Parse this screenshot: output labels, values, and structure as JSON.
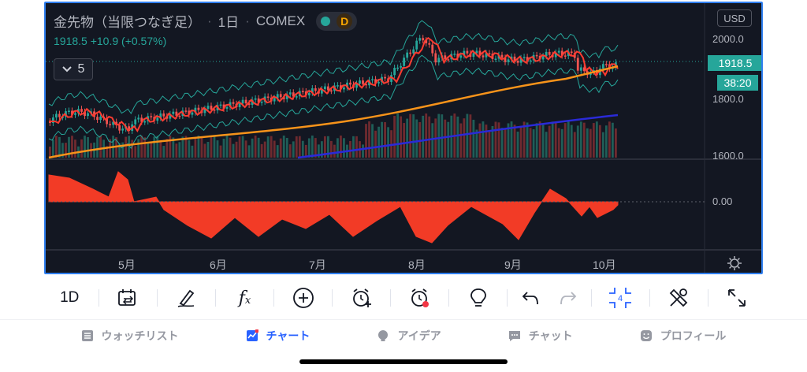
{
  "header": {
    "symbol": "金先物（当限つなぎ足）",
    "interval": "1日",
    "exchange": "COMEX",
    "market_badge": "D",
    "price": "1918.5",
    "change": "+10.9 (+0.57%)",
    "indicator_count": "5",
    "currency": "USD"
  },
  "price_scale": {
    "labels": [
      "2000.0",
      "1800.0",
      "1600.0"
    ],
    "oscillator_label": "0.00",
    "last_price": "1918.5",
    "countdown": "38:20"
  },
  "time_scale": {
    "labels": [
      "5月",
      "6月",
      "7月",
      "8月",
      "9月",
      "10月"
    ]
  },
  "colors": {
    "background": "#131722",
    "bull": "#26a69a",
    "bear": "#ef5350",
    "ma_short": "#ff3b30",
    "ma_mid": "#f7931a",
    "ma_long": "#2a2ad8",
    "oscillator": "#f23b26",
    "accent": "#2962ff"
  },
  "toolbar": {
    "interval_label": "1D",
    "items": [
      "compare-icon",
      "pen-icon",
      "function-icon",
      "add-icon",
      "alert-add-icon",
      "alert-icon",
      "idea-icon",
      "undo-icon",
      "redo-icon",
      "layout-icon",
      "tools-icon",
      "fullscreen-icon"
    ],
    "layout_count": "4"
  },
  "tabs": [
    {
      "label": "ウォッチリスト",
      "icon": "watchlist-icon"
    },
    {
      "label": "チャート",
      "icon": "chart-icon"
    },
    {
      "label": "アイデア",
      "icon": "idea-icon"
    },
    {
      "label": "チャット",
      "icon": "chat-icon"
    },
    {
      "label": "プロフィール",
      "icon": "profile-icon"
    }
  ]
}
